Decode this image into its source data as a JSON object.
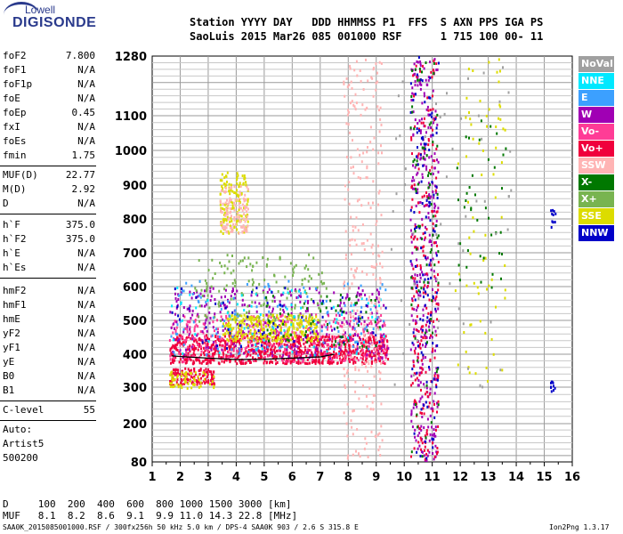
{
  "logo": {
    "line1": "Lowell",
    "line2": "DIGISONDE"
  },
  "header": {
    "row1": "Station YYYY DAY   DDD HHMMSS P1  FFS  S AXN PPS IGA PS",
    "row2": "SaoLuis 2015 Mar26 085 001000 RSF      1 715 100 00- 11"
  },
  "params": {
    "group1": [
      {
        "label": "foF2",
        "value": "7.800"
      },
      {
        "label": "foF1",
        "value": "N/A"
      },
      {
        "label": "foF1p",
        "value": "N/A"
      },
      {
        "label": "foE",
        "value": "N/A"
      },
      {
        "label": "foEp",
        "value": "0.45"
      },
      {
        "label": "fxI",
        "value": "N/A"
      },
      {
        "label": "foEs",
        "value": "N/A"
      },
      {
        "label": "fmin",
        "value": "1.75"
      }
    ],
    "group2": [
      {
        "label": "MUF(D)",
        "value": "22.77"
      },
      {
        "label": "M(D)",
        "value": "2.92"
      },
      {
        "label": "D",
        "value": "N/A"
      }
    ],
    "group3": [
      {
        "label": "h`F",
        "value": "375.0"
      },
      {
        "label": "h`F2",
        "value": "375.0"
      },
      {
        "label": "h`E",
        "value": "N/A"
      },
      {
        "label": "h`Es",
        "value": "N/A"
      }
    ],
    "group4": [
      {
        "label": "hmF2",
        "value": "N/A"
      },
      {
        "label": "hmF1",
        "value": "N/A"
      },
      {
        "label": "hmE",
        "value": "N/A"
      },
      {
        "label": "yF2",
        "value": "N/A"
      },
      {
        "label": "yF1",
        "value": "N/A"
      },
      {
        "label": "yE",
        "value": "N/A"
      },
      {
        "label": "B0",
        "value": "N/A"
      },
      {
        "label": "B1",
        "value": "N/A"
      }
    ],
    "clevel": {
      "label": "C-level",
      "value": "55"
    },
    "auto": [
      "Auto:",
      "Artist5",
      "500200"
    ]
  },
  "legend": [
    {
      "label": "NoVal",
      "color": "#a0a0a0"
    },
    {
      "label": "NNE",
      "color": "#00e8ff"
    },
    {
      "label": "E",
      "color": "#3ca0ff"
    },
    {
      "label": "W",
      "color": "#a000b4"
    },
    {
      "label": "Vo-",
      "color": "#ff3c96"
    },
    {
      "label": "Vo+",
      "color": "#f0003c"
    },
    {
      "label": "SSW",
      "color": "#ffb4b4"
    },
    {
      "label": "X-",
      "color": "#007800"
    },
    {
      "label": "X+",
      "color": "#78b450"
    },
    {
      "label": "SSE",
      "color": "#dcdc00"
    },
    {
      "label": "NNW",
      "color": "#0000c8"
    }
  ],
  "table": {
    "row1": "D     100  200  400  600  800 1000 1500 3000 [km]",
    "row2": "MUF   8.1  8.2  8.6  9.1  9.9 11.0 14.3 22.8 [MHz]"
  },
  "footer": {
    "left": "SAA0K_2015085001000.RSF / 300fx256h 50 kHz 5.0 km / DPS-4 SAA0K 903 / 2.6 S 315.8 E",
    "right": "Ion2Png 1.3.17"
  },
  "chart_data": {
    "type": "scatter",
    "title": "",
    "xlabel": "",
    "ylabel": "",
    "xlim": [
      1,
      16
    ],
    "ylim": [
      80,
      1280
    ],
    "y_scale": "ionogram (compressed upper range)",
    "x_ticks": [
      "1",
      "2",
      "3",
      "4",
      "5",
      "6",
      "7",
      "8",
      "9",
      "10",
      "11",
      "12",
      "13",
      "14",
      "15",
      "16"
    ],
    "y_ticks": [
      "80",
      "200",
      "300",
      "400",
      "500",
      "600",
      "700",
      "800",
      "900",
      "1000",
      "1100",
      "1280"
    ],
    "grid": true,
    "legend_position": "right",
    "trace": {
      "color": "#000000",
      "x": [
        1.7,
        2.2,
        3.0,
        4.0,
        5.0,
        6.0,
        7.0,
        7.5
      ],
      "y": [
        395,
        392,
        388,
        384,
        385,
        388,
        392,
        400
      ]
    },
    "clusters": [
      {
        "series": "Vo+",
        "xrange": [
          1.6,
          9.4
        ],
        "yrange": [
          375,
          460
        ],
        "count": 900
      },
      {
        "series": "Vo-",
        "xrange": [
          1.6,
          9.4
        ],
        "yrange": [
          380,
          520
        ],
        "count": 350
      },
      {
        "series": "W",
        "xrange": [
          1.6,
          9.4
        ],
        "yrange": [
          390,
          600
        ],
        "count": 350
      },
      {
        "series": "SSE",
        "xrange": [
          3.5,
          6.9
        ],
        "yrange": [
          440,
          520
        ],
        "count": 300
      },
      {
        "series": "SSE",
        "xrange": [
          3.4,
          4.4
        ],
        "yrange": [
          760,
          940
        ],
        "count": 140
      },
      {
        "series": "SSW",
        "xrange": [
          3.4,
          4.4
        ],
        "yrange": [
          760,
          900
        ],
        "count": 110
      },
      {
        "series": "X+",
        "xrange": [
          2.5,
          7.2
        ],
        "yrange": [
          500,
          700
        ],
        "count": 150
      },
      {
        "series": "E",
        "xrange": [
          1.6,
          9.4
        ],
        "yrange": [
          400,
          620
        ],
        "count": 120
      },
      {
        "series": "NNE",
        "xrange": [
          1.6,
          9.4
        ],
        "yrange": [
          400,
          600
        ],
        "count": 70
      },
      {
        "series": "NNW",
        "xrange": [
          1.6,
          9.4
        ],
        "yrange": [
          420,
          600
        ],
        "count": 60
      },
      {
        "series": "X-",
        "xrange": [
          5.0,
          9.4
        ],
        "yrange": [
          420,
          580
        ],
        "count": 60
      },
      {
        "series": "Vo+",
        "xrange": [
          1.6,
          3.2
        ],
        "yrange": [
          310,
          360
        ],
        "count": 130
      },
      {
        "series": "SSE",
        "xrange": [
          1.6,
          3.2
        ],
        "yrange": [
          300,
          350
        ],
        "count": 60
      },
      {
        "series": "SSW",
        "xrange": [
          7.8,
          9.2
        ],
        "yrange": [
          90,
          1280
        ],
        "count": 260
      },
      {
        "series": "W",
        "xrange": [
          10.2,
          11.2
        ],
        "yrange": [
          80,
          1280
        ],
        "count": 320
      },
      {
        "series": "Vo+",
        "xrange": [
          10.2,
          11.2
        ],
        "yrange": [
          80,
          1280
        ],
        "count": 220
      },
      {
        "series": "NNW",
        "xrange": [
          10.2,
          11.2
        ],
        "yrange": [
          80,
          1280
        ],
        "count": 120
      },
      {
        "series": "X-",
        "xrange": [
          10.2,
          11.2
        ],
        "yrange": [
          80,
          1280
        ],
        "count": 80
      },
      {
        "series": "SSE",
        "xrange": [
          11.8,
          13.6
        ],
        "yrange": [
          300,
          1280
        ],
        "count": 70
      },
      {
        "series": "X-",
        "xrange": [
          11.8,
          13.6
        ],
        "yrange": [
          600,
          1100
        ],
        "count": 40
      },
      {
        "series": "NoVal",
        "xrange": [
          9.5,
          13.8
        ],
        "yrange": [
          300,
          1280
        ],
        "count": 60
      },
      {
        "series": "NNW",
        "xrange": [
          15.2,
          15.4
        ],
        "yrange": [
          290,
          320
        ],
        "count": 10
      },
      {
        "series": "NNW",
        "xrange": [
          15.2,
          15.4
        ],
        "yrange": [
          770,
          840
        ],
        "count": 10
      }
    ]
  }
}
